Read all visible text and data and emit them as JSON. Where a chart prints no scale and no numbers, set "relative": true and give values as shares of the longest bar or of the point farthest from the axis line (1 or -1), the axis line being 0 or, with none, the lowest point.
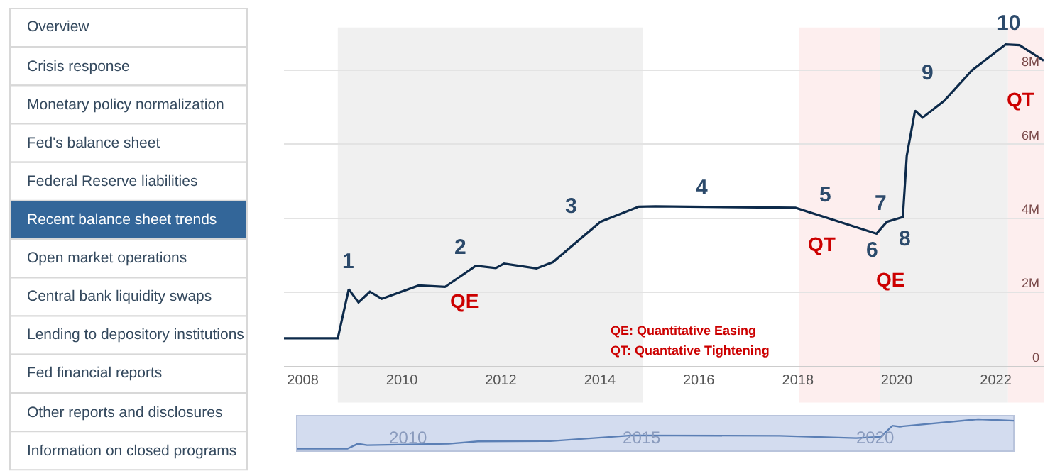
{
  "chart_data": [
    {
      "type": "other",
      "annotations": [
        "Overview",
        "Crisis response",
        "Monetary policy normalization",
        "Fed's balance sheet",
        "Federal Reserve liabilities",
        "Recent balance sheet trends",
        "Open market operations",
        "Central bank liquidity swaps",
        "Lending to depository institutions",
        "Fed financial reports",
        "Other reports and disclosures",
        "Information on closed programs"
      ],
      "colors": [
        "#ffffff",
        "#ffffff",
        "#ffffff",
        "#ffffff",
        "#ffffff",
        "#336699",
        "#ffffff",
        "#ffffff",
        "#ffffff",
        "#ffffff",
        "#ffffff",
        "#ffffff"
      ]
    },
    {
      "type": "line",
      "x": [
        "2007-08-15",
        "2008-09-15",
        "2008-12-05",
        "2009-02-15",
        "2009-05-10",
        "2009-08-05",
        "2010-05-05",
        "2010-11-15",
        "2011-07-01",
        "2011-11-25",
        "2012-01-25",
        "2012-09-20",
        "2013-01-20",
        "2014-01-05",
        "2014-10-15",
        "2015-02-15",
        "2017-12-15",
        "2019-08-05",
        "2019-10-20",
        "2020-02-15",
        "2020-03-15",
        "2020-05-15",
        "2020-07-10",
        "2020-12-15",
        "2021-07-10",
        "2022-03-15",
        "2022-06-25",
        "2022-12-20"
      ],
      "series": [
        {
          "color": "#0d2a4a",
          "values": [
            0.75,
            0.75,
            2.08,
            1.72,
            2.01,
            1.82,
            2.18,
            2.14,
            2.71,
            2.65,
            2.77,
            2.64,
            2.81,
            3.9,
            4.31,
            4.32,
            4.28,
            3.58,
            3.9,
            4.03,
            5.69,
            6.91,
            6.72,
            7.17,
            8.0,
            8.7,
            8.68,
            8.26
          ]
        }
      ],
      "xlim": [
        "2007-08-15",
        "2022-12-20"
      ],
      "xticks": [
        {
          "value": "2008",
          "label": "2008"
        },
        {
          "value": "2010",
          "label": "2010"
        },
        {
          "value": "2012",
          "label": "2012"
        },
        {
          "value": "2014",
          "label": "2014"
        },
        {
          "value": "2016",
          "label": "2016"
        },
        {
          "value": "2018",
          "label": "2018"
        },
        {
          "value": "2020",
          "label": "2020"
        },
        {
          "value": "2022",
          "label": "2022"
        }
      ],
      "ylim": [
        0,
        9.9
      ],
      "yticks": [
        0,
        {
          "value": 2,
          "label": "2M"
        },
        {
          "value": 4,
          "label": "4M"
        },
        {
          "value": 6,
          "label": "6M"
        },
        {
          "value": 8,
          "label": "8M"
        }
      ],
      "grid": "y",
      "marker": "none",
      "line_style": "solid",
      "bands": [
        {
          "axis": "x",
          "from": "2008-09-15",
          "to": "2014-11-15",
          "color": "#f0f0f0"
        },
        {
          "axis": "x",
          "from": "2018-01-10",
          "to": "2019-08-28",
          "color": "#fdeeee"
        },
        {
          "axis": "x",
          "from": "2019-08-28",
          "to": "2022-04-01",
          "color": "#f0f0f0"
        },
        {
          "axis": "x",
          "from": "2022-04-01",
          "to": "2022-12-20",
          "color": "#fdeeee"
        }
      ],
      "annotations": [
        "1",
        "2",
        "3",
        "4",
        "5",
        "6",
        "7",
        "8",
        "9",
        "10",
        "QE",
        "QT",
        "QE",
        "QT",
        "QE: Quantitative Easing",
        "QT: Quantative Tightening"
      ]
    },
    {
      "type": "line",
      "relative": true,
      "x": [
        "2007-08-15",
        "2008-09-15",
        "2008-12-05",
        "2009-02-15",
        "2010-11-15",
        "2011-07-01",
        "2013-01-20",
        "2014-10-15",
        "2017-12-15",
        "2019-08-05",
        "2020-02-15",
        "2020-05-15",
        "2020-07-10",
        "2022-03-15",
        "2022-12-20"
      ],
      "series": [
        {
          "color": "#5b7fb5",
          "values": [
            0,
            0,
            0.17,
            0.12,
            0.17,
            0.25,
            0.26,
            0.45,
            0.44,
            0.36,
            0.41,
            0.78,
            0.75,
            1.0,
            0.95
          ]
        }
      ],
      "xlim": [
        "2007-08-15",
        "2022-12-20"
      ],
      "xticks": [
        {
          "value": "2010",
          "label": "2010"
        },
        {
          "value": "2015",
          "label": "2015"
        },
        {
          "value": "2020",
          "label": "2020"
        }
      ],
      "marker": "none"
    }
  ]
}
